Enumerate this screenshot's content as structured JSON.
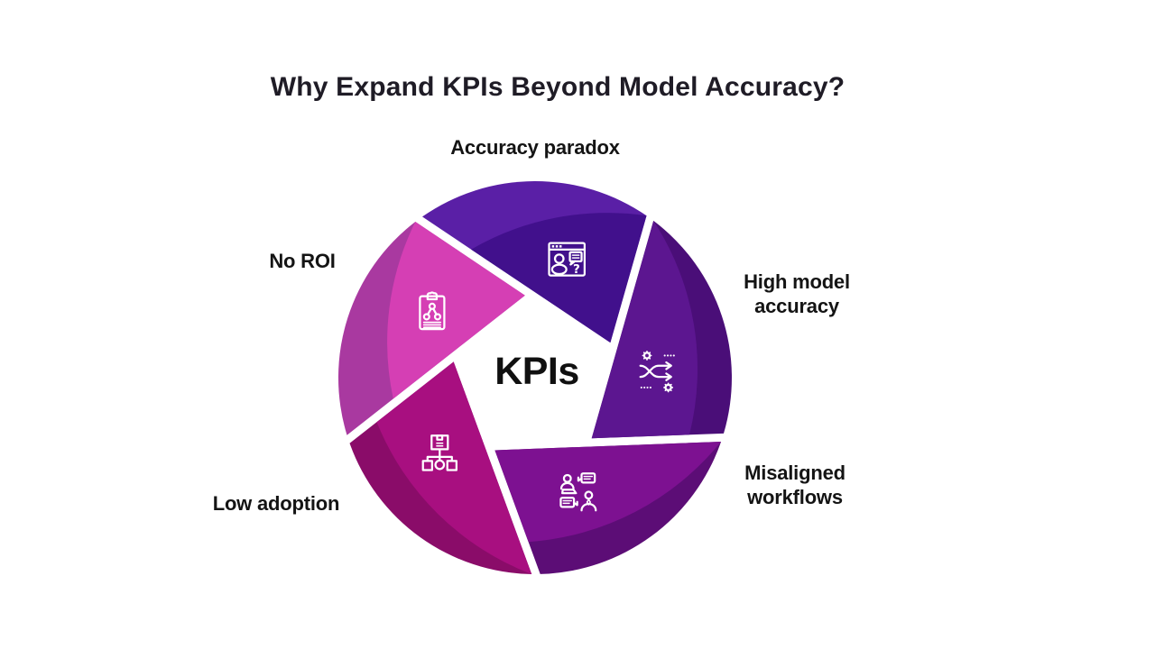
{
  "title": "Why Expand KPIs Beyond Model Accuracy?",
  "center_label": "KPIs",
  "colors": {
    "background": "#ffffff",
    "title_text": "#1f1c26",
    "label_text": "#141414",
    "center_label_text": "#101010",
    "icon_stroke": "#ffffff"
  },
  "segments": [
    {
      "label": "Accuracy paradox",
      "position": "top",
      "icon": "user-question-window-icon",
      "body_color": "#41108C",
      "band_color": "#5A1FA6"
    },
    {
      "label": "High model accuracy",
      "position": "right",
      "icon": "shuffle-gears-icon",
      "body_color": "#5C1690",
      "band_color": "#4A0E78"
    },
    {
      "label": "Misaligned workflows",
      "position": "bottom-right",
      "icon": "people-chat-icon",
      "body_color": "#7D1191",
      "band_color": "#5C0D76"
    },
    {
      "label": "Low adoption",
      "position": "bottom-left",
      "icon": "box-hierarchy-icon",
      "body_color": "#A80F80",
      "band_color": "#8A0C69"
    },
    {
      "label": "No ROI",
      "position": "top-left",
      "icon": "clipboard-graph-icon",
      "body_color": "#D53FB4",
      "band_color": "#A939A0"
    }
  ]
}
